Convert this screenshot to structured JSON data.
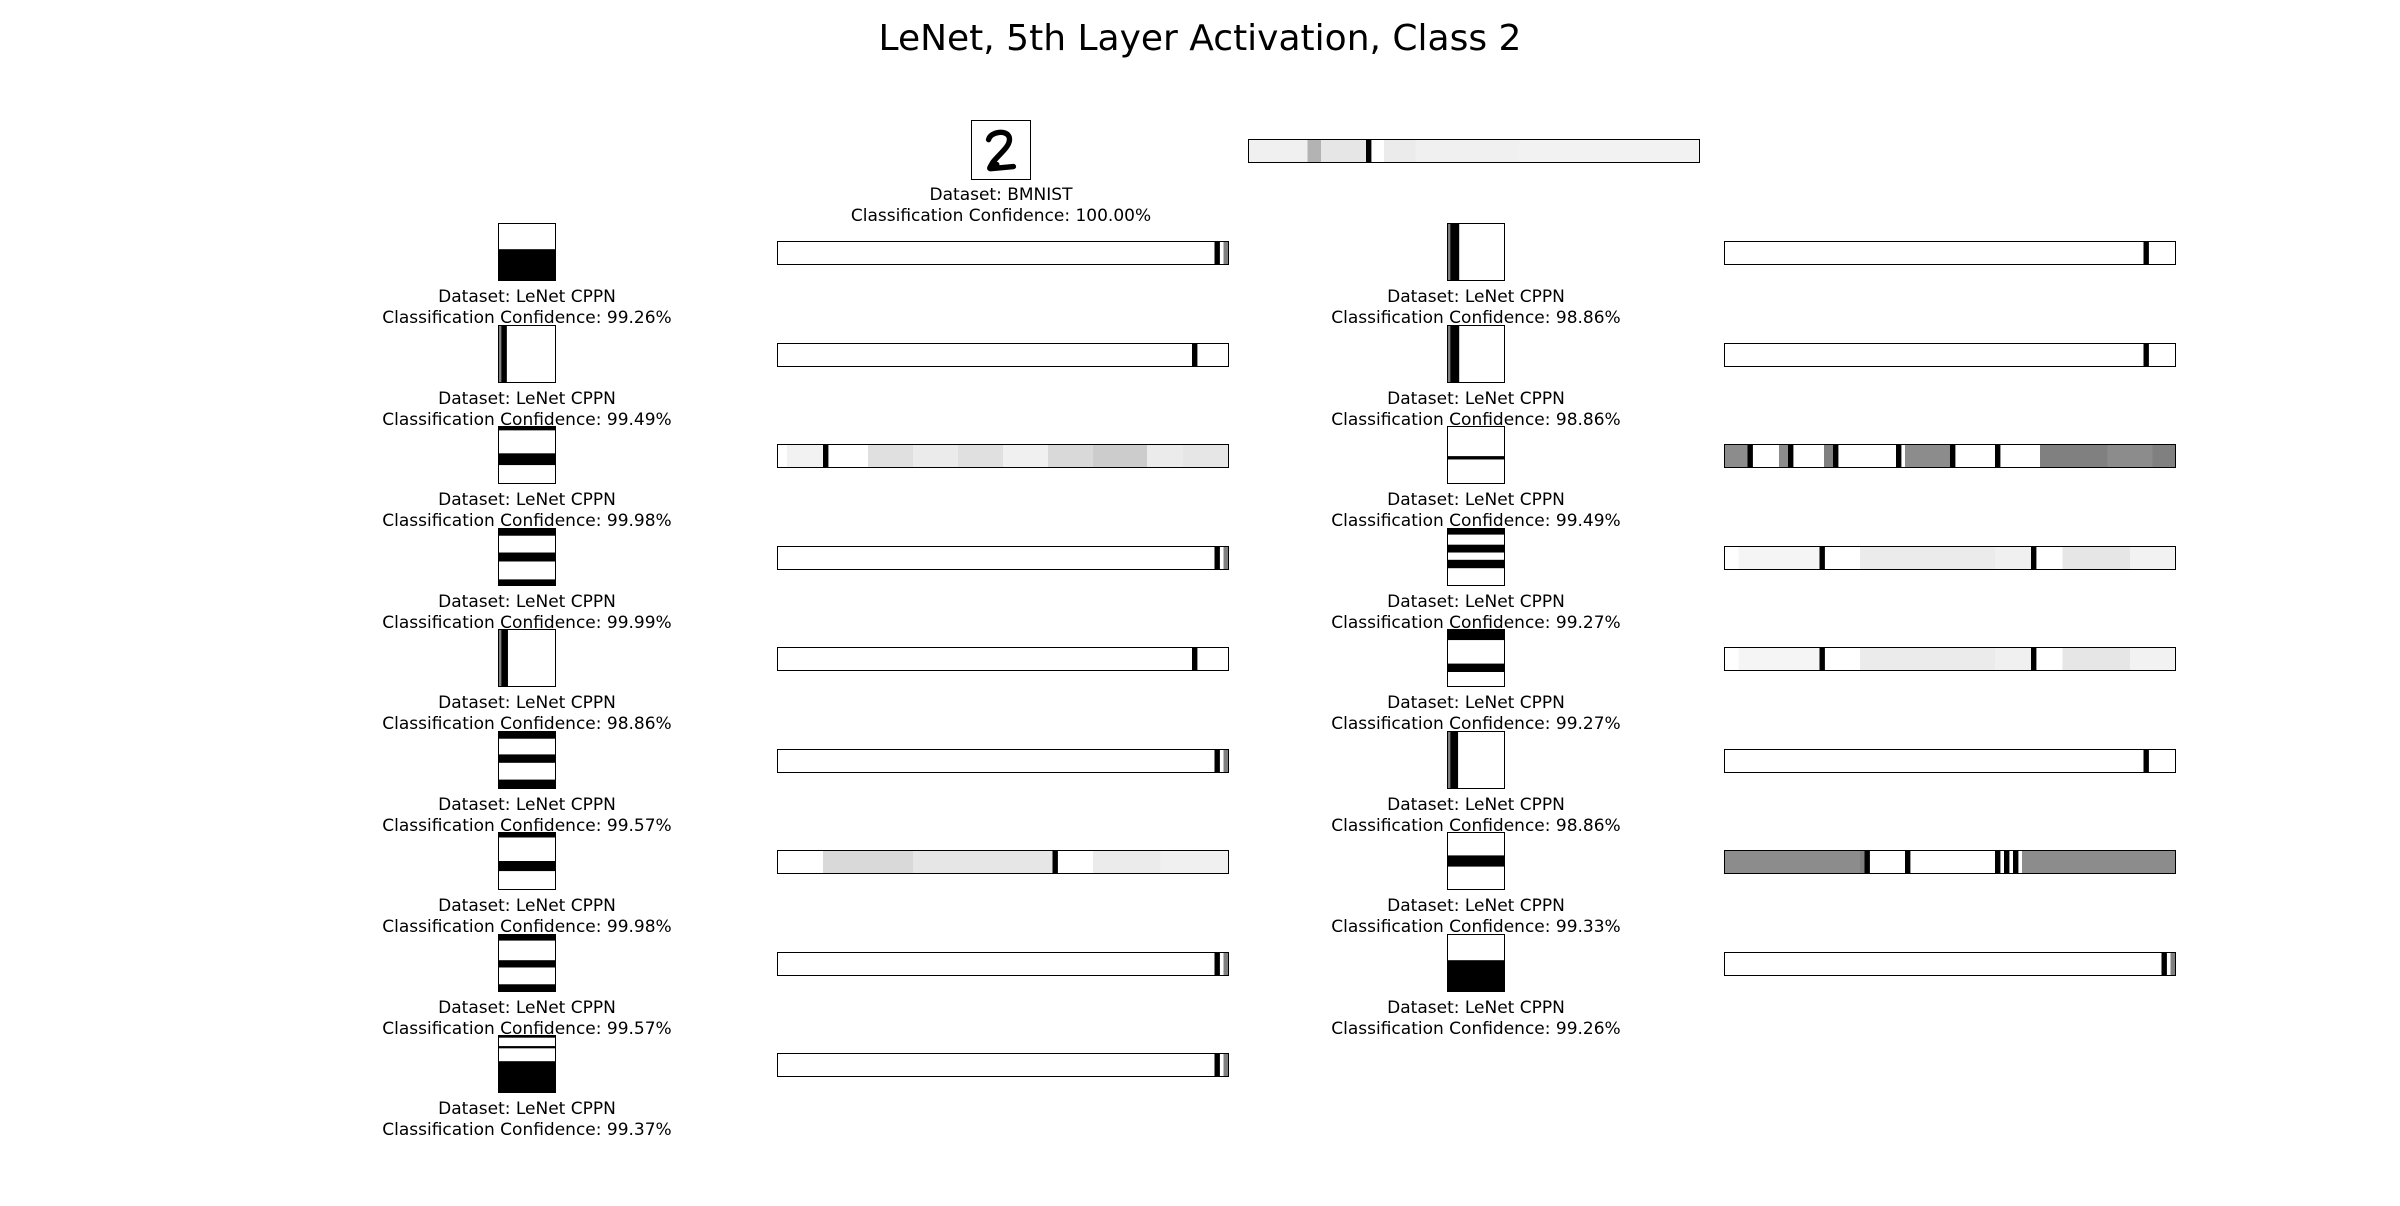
{
  "title": "LeNet, 5th Layer Activation, Class 2",
  "caption_prefix_dataset": "Dataset: ",
  "caption_prefix_confidence": "Classification Confidence: ",
  "reference": {
    "dataset": "Dataset: BMNIST",
    "confidence": "Classification Confidence: 100.00%",
    "activation": [
      [
        0,
        0.06
      ],
      [
        0.13,
        0.3
      ],
      [
        0.16,
        0.1
      ],
      [
        0.26,
        1
      ],
      [
        0.3,
        0.08
      ],
      [
        0.37,
        0.06
      ],
      [
        0.5,
        0.06
      ],
      [
        0.6,
        0.05
      ],
      [
        0.75,
        0.05
      ],
      [
        0.83,
        0.05
      ],
      [
        0.95,
        0.05
      ]
    ]
  },
  "left_column": [
    {
      "dataset": "Dataset: LeNet CPPN",
      "confidence": "Classification Confidence: 99.26%",
      "pattern": {
        "type": "hbands",
        "bands": [
          [
            0.45,
            1.0
          ]
        ]
      },
      "activation": [
        [
          0.97,
          1
        ],
        [
          0.99,
          0.5
        ]
      ]
    },
    {
      "dataset": "Dataset: LeNet CPPN",
      "confidence": "Classification Confidence: 99.49%",
      "pattern": {
        "type": "vbands",
        "bands": [
          [
            0,
            0.04,
            0.5
          ],
          [
            0.04,
            0.14,
            1
          ]
        ]
      },
      "activation": [
        [
          0.92,
          1
        ]
      ]
    },
    {
      "dataset": "Dataset: LeNet CPPN",
      "confidence": "Classification Confidence: 99.98%",
      "pattern": {
        "type": "hbands",
        "bands": [
          [
            0,
            0.06
          ],
          [
            0.47,
            0.68
          ]
        ]
      },
      "activation": [
        [
          0.02,
          0.05
        ],
        [
          0.1,
          1
        ],
        [
          0.2,
          0.12
        ],
        [
          0.3,
          0.08
        ],
        [
          0.4,
          0.12
        ],
        [
          0.5,
          0.06
        ],
        [
          0.6,
          0.15
        ],
        [
          0.7,
          0.2
        ],
        [
          0.82,
          0.08
        ],
        [
          0.9,
          0.1
        ]
      ]
    },
    {
      "dataset": "Dataset: LeNet CPPN",
      "confidence": "Classification Confidence: 99.99%",
      "pattern": {
        "type": "hbands",
        "bands": [
          [
            0,
            0.12
          ],
          [
            0.42,
            0.58
          ],
          [
            0.9,
            1.0
          ]
        ]
      },
      "activation": [
        [
          0.97,
          1
        ],
        [
          0.99,
          0.5
        ]
      ]
    },
    {
      "dataset": "Dataset: LeNet CPPN",
      "confidence": "Classification Confidence: 98.86%",
      "pattern": {
        "type": "vbands",
        "bands": [
          [
            0,
            0.04,
            0.5
          ],
          [
            0.04,
            0.16,
            1
          ]
        ]
      },
      "activation": [
        [
          0.92,
          1
        ]
      ]
    },
    {
      "dataset": "Dataset: LeNet CPPN",
      "confidence": "Classification Confidence: 99.57%",
      "pattern": {
        "type": "hbands",
        "bands": [
          [
            0,
            0.12
          ],
          [
            0.4,
            0.55
          ],
          [
            0.85,
            1.0
          ]
        ]
      },
      "activation": [
        [
          0.97,
          1
        ],
        [
          0.99,
          0.5
        ]
      ]
    },
    {
      "dataset": "Dataset: LeNet CPPN",
      "confidence": "Classification Confidence: 99.98%",
      "pattern": {
        "type": "hbands",
        "bands": [
          [
            0,
            0.08
          ],
          [
            0.5,
            0.68
          ]
        ]
      },
      "activation": [
        [
          0.1,
          0.15
        ],
        [
          0.3,
          0.1
        ],
        [
          0.61,
          1
        ],
        [
          0.7,
          0.08
        ],
        [
          0.85,
          0.06
        ]
      ]
    },
    {
      "dataset": "Dataset: LeNet CPPN",
      "confidence": "Classification Confidence: 99.57%",
      "pattern": {
        "type": "hbands",
        "bands": [
          [
            0,
            0.1
          ],
          [
            0.45,
            0.58
          ],
          [
            0.88,
            1.0
          ]
        ]
      },
      "activation": [
        [
          0.97,
          1
        ],
        [
          0.99,
          0.5
        ]
      ]
    },
    {
      "dataset": "Dataset: LeNet CPPN",
      "confidence": "Classification Confidence: 99.37%",
      "pattern": {
        "type": "hbands",
        "bands": [
          [
            0,
            0.03
          ],
          [
            0.18,
            0.22
          ],
          [
            0.45,
            1.0
          ]
        ]
      },
      "activation": [
        [
          0.97,
          1
        ],
        [
          0.99,
          0.5
        ]
      ]
    }
  ],
  "right_column": [
    {
      "dataset": "Dataset: LeNet CPPN",
      "confidence": "Classification Confidence: 98.86%",
      "pattern": {
        "type": "vbands",
        "bands": [
          [
            0,
            0.04,
            0.5
          ],
          [
            0.04,
            0.2,
            1
          ]
        ]
      },
      "activation": [
        [
          0.93,
          1
        ]
      ]
    },
    {
      "dataset": "Dataset: LeNet CPPN",
      "confidence": "Classification Confidence: 98.86%",
      "pattern": {
        "type": "vbands",
        "bands": [
          [
            0,
            0.04,
            0.5
          ],
          [
            0.04,
            0.2,
            1
          ]
        ]
      },
      "activation": [
        [
          0.93,
          1
        ]
      ]
    },
    {
      "dataset": "Dataset: LeNet CPPN",
      "confidence": "Classification Confidence: 99.49%",
      "pattern": {
        "type": "hbands",
        "bands": [
          [
            0.52,
            0.58
          ]
        ]
      },
      "activation": [
        [
          0,
          0.45
        ],
        [
          0.05,
          1
        ],
        [
          0.12,
          0.45
        ],
        [
          0.14,
          1
        ],
        [
          0.22,
          0.5
        ],
        [
          0.24,
          1
        ],
        [
          0.38,
          1
        ],
        [
          0.4,
          0.45
        ],
        [
          0.5,
          1
        ],
        [
          0.6,
          1
        ],
        [
          0.7,
          0.5
        ],
        [
          0.85,
          0.45
        ],
        [
          0.95,
          0.5
        ]
      ]
    },
    {
      "dataset": "Dataset: LeNet CPPN",
      "confidence": "Classification Confidence: 99.27%",
      "pattern": {
        "type": "hbands",
        "bands": [
          [
            0,
            0.1
          ],
          [
            0.28,
            0.42
          ],
          [
            0.55,
            0.7
          ]
        ]
      },
      "activation": [
        [
          0.03,
          0.04
        ],
        [
          0.21,
          1
        ],
        [
          0.3,
          0.08
        ],
        [
          0.4,
          0.08
        ],
        [
          0.6,
          0.06
        ],
        [
          0.68,
          1
        ],
        [
          0.75,
          0.1
        ],
        [
          0.9,
          0.05
        ]
      ]
    },
    {
      "dataset": "Dataset: LeNet CPPN",
      "confidence": "Classification Confidence: 99.27%",
      "pattern": {
        "type": "hbands",
        "bands": [
          [
            0,
            0.18
          ],
          [
            0.6,
            0.75
          ]
        ]
      },
      "activation": [
        [
          0.03,
          0.04
        ],
        [
          0.21,
          1
        ],
        [
          0.3,
          0.08
        ],
        [
          0.4,
          0.08
        ],
        [
          0.6,
          0.06
        ],
        [
          0.68,
          1
        ],
        [
          0.75,
          0.1
        ],
        [
          0.9,
          0.05
        ]
      ]
    },
    {
      "dataset": "Dataset: LeNet CPPN",
      "confidence": "Classification Confidence: 98.86%",
      "pattern": {
        "type": "vbands",
        "bands": [
          [
            0,
            0.04,
            0.5
          ],
          [
            0.04,
            0.18,
            1
          ]
        ]
      },
      "activation": [
        [
          0.93,
          1
        ]
      ]
    },
    {
      "dataset": "Dataset: LeNet CPPN",
      "confidence": "Classification Confidence: 99.33%",
      "pattern": {
        "type": "hbands",
        "bands": [
          [
            0.4,
            0.6
          ]
        ]
      },
      "activation": [
        [
          0,
          0.45
        ],
        [
          0.3,
          0.5
        ],
        [
          0.31,
          1
        ],
        [
          0.4,
          1
        ],
        [
          0.6,
          1
        ],
        [
          0.62,
          1
        ],
        [
          0.64,
          1
        ],
        [
          0.66,
          0.45
        ],
        [
          0.8,
          0.45
        ]
      ]
    },
    {
      "dataset": "Dataset: LeNet CPPN",
      "confidence": "Classification Confidence: 99.26%",
      "pattern": {
        "type": "hbands",
        "bands": [
          [
            0.45,
            1.0
          ]
        ]
      },
      "activation": [
        [
          0.97,
          1
        ],
        [
          0.99,
          0.5
        ]
      ]
    }
  ]
}
